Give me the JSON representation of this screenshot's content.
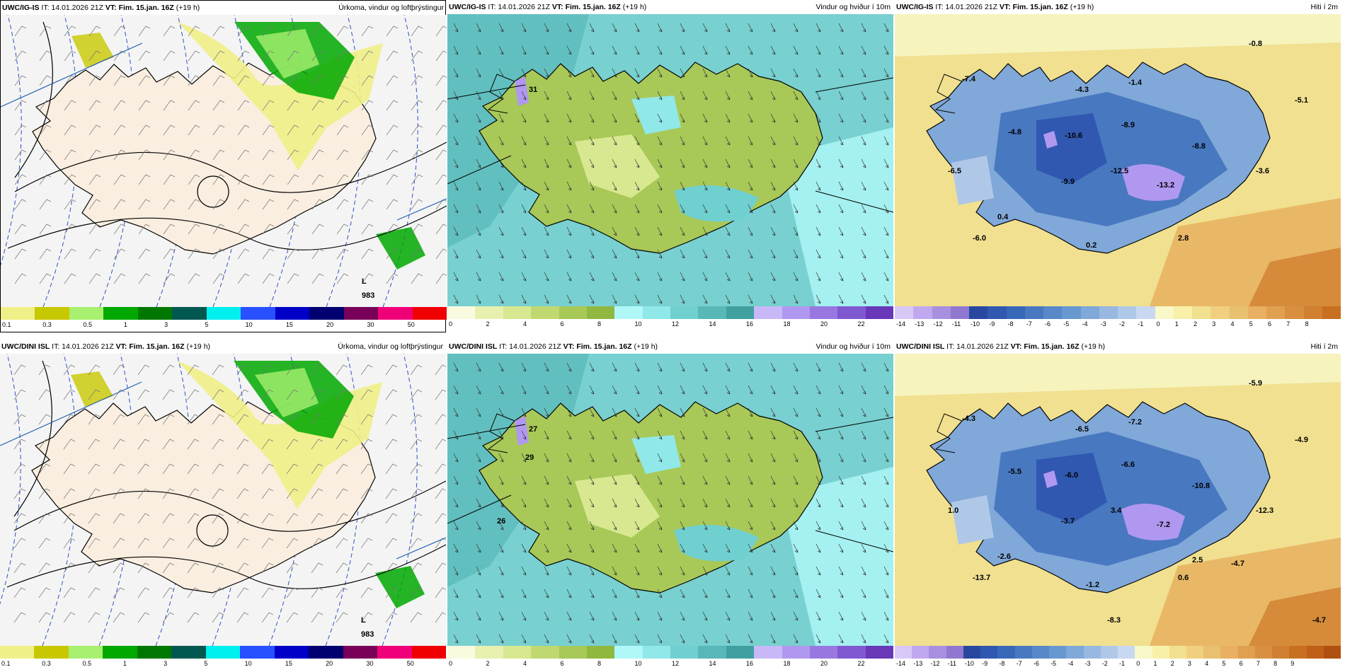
{
  "panels": [
    {
      "model": "UWC/IG-IS",
      "it": "IT: 14.01.2026 21Z",
      "vt_label": "VT:",
      "vt": "Fim. 15.jan. 16Z",
      "lead": "(+19 h)",
      "title": "Úrkoma, vindur og loftþrýstingur",
      "kind": "precip",
      "scale_colors": [
        "#f0f088",
        "#c8c800",
        "#a8f070",
        "#00a800",
        "#007800",
        "#005850",
        "#00f0f0",
        "#2850ff",
        "#0000c8",
        "#000070",
        "#780058",
        "#f00078",
        "#f00000"
      ],
      "scale_labels": [
        "0.1",
        "0.3",
        "0.5",
        "1",
        "3",
        "5",
        "10",
        "15",
        "20",
        "30",
        "50"
      ],
      "labels": [
        "L",
        "983"
      ]
    },
    {
      "model": "UWC/IG-IS",
      "it": "IT: 14.01.2026 21Z",
      "vt_label": "VT:",
      "vt": "Fim. 15.jan. 16Z",
      "lead": "(+19 h)",
      "title": "Vindur og hviður í 10m",
      "kind": "wind",
      "scale_colors": [
        "#fafae0",
        "#e8f0b0",
        "#d8e890",
        "#c0d870",
        "#a8c858",
        "#90b840",
        "#b0f8f8",
        "#90e8e8",
        "#70d0d0",
        "#58b8b8",
        "#40a0a0",
        "#c8b8f8",
        "#b098f0",
        "#9878e0",
        "#8058d0",
        "#6838b8"
      ],
      "scale_labels": [
        "0",
        "2",
        "4",
        "6",
        "8",
        "10",
        "12",
        "14",
        "16",
        "18",
        "20",
        "22"
      ],
      "labels": [
        "31"
      ]
    },
    {
      "model": "UWC/IG-IS",
      "it": "IT: 14.01.2026 21Z",
      "vt_label": "VT:",
      "vt": "Fim. 15.jan. 16Z",
      "lead": "(+19 h)",
      "title": "Hiti í 2m",
      "kind": "temp",
      "scale_colors": [
        "#d8c8f8",
        "#c0a8f0",
        "#a890e0",
        "#9078d0",
        "#2848a0",
        "#3058b0",
        "#3868b8",
        "#4878c0",
        "#5888c8",
        "#6898d0",
        "#80a8d8",
        "#98b8e0",
        "#b0c8e8",
        "#c8d8f0",
        "#f8f8c8",
        "#f8f0a8",
        "#f0e090",
        "#f0d080",
        "#e8c070",
        "#e8b060",
        "#e0a050",
        "#d89040",
        "#d08030",
        "#c87020"
      ],
      "scale_labels": [
        "-14",
        "-13",
        "-12",
        "-11",
        "-10",
        "-9",
        "-8",
        "-7",
        "-6",
        "-5",
        "-4",
        "-3",
        "-2",
        "-1",
        "0",
        "1",
        "2",
        "3",
        "4",
        "5",
        "6",
        "7",
        "8"
      ],
      "labels": [
        "-0.8",
        "-7.4",
        "-4.3",
        "-1.4",
        "-5.1",
        "-4.8",
        "-10.6",
        "-8.9",
        "-8.8",
        "-6.5",
        "-9.9",
        "-12.5",
        "-13.2",
        "-3.6",
        "0.4",
        "-6.0",
        "0.2",
        "2.8"
      ]
    },
    {
      "model": "UWC/DINI ISL",
      "it": "IT: 14.01.2026 21Z",
      "vt_label": "VT:",
      "vt": "Fim. 15.jan. 16Z",
      "lead": "(+19 h)",
      "title": "Úrkoma, vindur og loftþrýstingur",
      "kind": "precip",
      "scale_colors": [
        "#f0f088",
        "#c8c800",
        "#a8f070",
        "#00a800",
        "#007800",
        "#005850",
        "#00f0f0",
        "#2850ff",
        "#0000c8",
        "#000070",
        "#780058",
        "#f00078",
        "#f00000"
      ],
      "scale_labels": [
        "0.1",
        "0.3",
        "0.5",
        "1",
        "3",
        "5",
        "10",
        "15",
        "20",
        "30",
        "50"
      ],
      "labels": [
        "L",
        "983"
      ]
    },
    {
      "model": "UWC/DINI ISL",
      "it": "IT: 14.01.2026 21Z",
      "vt_label": "VT:",
      "vt": "Fim. 15.jan. 16Z",
      "lead": "(+19 h)",
      "title": "Vindur og hviður í 10m",
      "kind": "wind",
      "scale_colors": [
        "#fafae0",
        "#e8f0b0",
        "#d8e890",
        "#c0d870",
        "#a8c858",
        "#90b840",
        "#b0f8f8",
        "#90e8e8",
        "#70d0d0",
        "#58b8b8",
        "#40a0a0",
        "#c8b8f8",
        "#b098f0",
        "#9878e0",
        "#8058d0",
        "#6838b8"
      ],
      "scale_labels": [
        "0",
        "2",
        "4",
        "6",
        "8",
        "10",
        "12",
        "14",
        "16",
        "18",
        "20",
        "22"
      ],
      "labels": [
        "27",
        "29",
        "26"
      ]
    },
    {
      "model": "UWC/DINI ISL",
      "it": "IT: 14.01.2026 21Z",
      "vt_label": "VT:",
      "vt": "Fim. 15.jan. 16Z",
      "lead": "(+19 h)",
      "title": "Hiti í 2m",
      "kind": "temp",
      "scale_colors": [
        "#d8c8f8",
        "#c0a8f0",
        "#a890e0",
        "#9078d0",
        "#2848a0",
        "#3058b0",
        "#3868b8",
        "#4878c0",
        "#5888c8",
        "#6898d0",
        "#80a8d8",
        "#98b8e0",
        "#b0c8e8",
        "#c8d8f0",
        "#f8f8c8",
        "#f8f0a8",
        "#f0e090",
        "#f0d080",
        "#e8c070",
        "#e8b060",
        "#e0a050",
        "#d89040",
        "#d08030",
        "#c87020",
        "#c06018",
        "#b05010"
      ],
      "scale_labels": [
        "-14",
        "-13",
        "-12",
        "-11",
        "-10",
        "-9",
        "-8",
        "-7",
        "-6",
        "-5",
        "-4",
        "-3",
        "-2",
        "-1",
        "0",
        "1",
        "2",
        "3",
        "4",
        "5",
        "6",
        "7",
        "8",
        "9"
      ],
      "labels": [
        "-5.9",
        "-4.3",
        "-6.5",
        "-7.2",
        "-4.9",
        "-5.5",
        "-6.0",
        "-6.6",
        "-10.8",
        "1.0",
        "-3.7",
        "3.4",
        "-7.2",
        "-12.3",
        "-2.6",
        "-13.7",
        "-1.2",
        "0.6",
        "-4.7",
        "2.5",
        "-8.3",
        "-4.7"
      ]
    }
  ]
}
